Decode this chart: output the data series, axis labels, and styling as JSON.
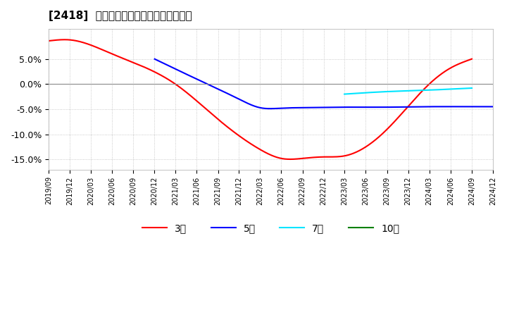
{
  "title": "[2418]  経常利益マージンの平均値の推移",
  "ylim": [
    -0.17,
    0.11
  ],
  "yticks": [
    0.05,
    0.0,
    -0.05,
    -0.1,
    -0.15
  ],
  "ytick_labels": [
    "5.0%",
    "0.0%",
    "-5.0%",
    "-10.0%",
    "-15.0%"
  ],
  "background_color": "#ffffff",
  "plot_bg_color": "#ffffff",
  "grid_color": "#bbbbbb",
  "series_3yr_color": "#ff0000",
  "series_3yr_label": "3年",
  "series_5yr_color": "#0000ff",
  "series_5yr_label": "5年",
  "series_7yr_color": "#00e5ff",
  "series_7yr_label": "7年",
  "series_10yr_color": "#008000",
  "series_10yr_label": "10年",
  "x_tick_labels": [
    "2019/09",
    "2019/12",
    "2020/03",
    "2020/06",
    "2020/09",
    "2020/12",
    "2021/03",
    "2021/06",
    "2021/09",
    "2021/12",
    "2022/03",
    "2022/06",
    "2022/09",
    "2022/12",
    "2023/03",
    "2023/06",
    "2023/09",
    "2023/12",
    "2024/03",
    "2024/06",
    "2024/09",
    "2024/12"
  ]
}
